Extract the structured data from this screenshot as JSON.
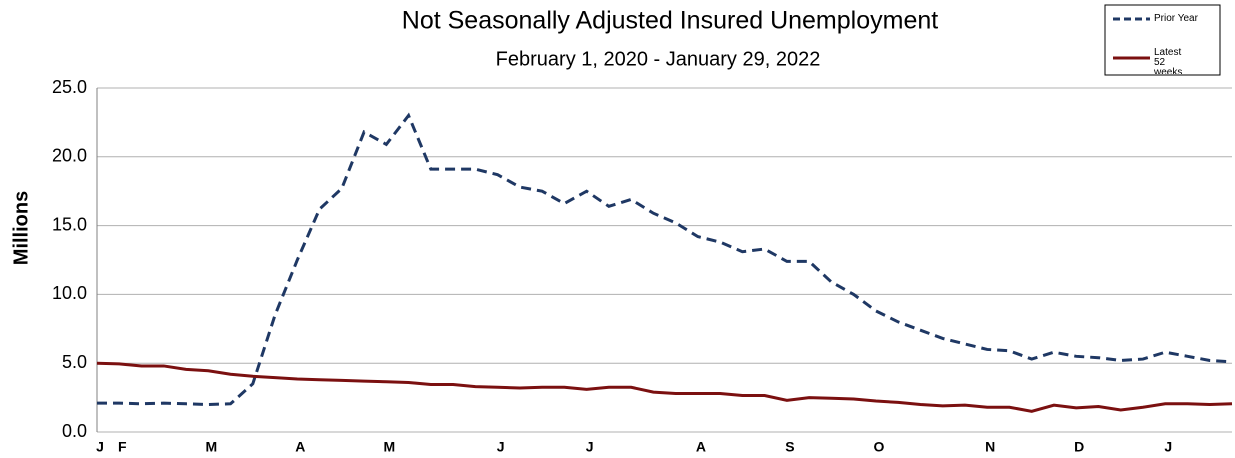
{
  "chart_data": {
    "type": "line",
    "title": "Not Seasonally Adjusted Insured Unemployment",
    "subtitle": "February 1, 2020 - January 29, 2022",
    "y_label": "Millions",
    "categories": [
      "J",
      "F",
      null,
      null,
      null,
      "M",
      null,
      null,
      null,
      "A",
      null,
      null,
      null,
      "M",
      null,
      null,
      null,
      null,
      "J",
      null,
      null,
      null,
      "J",
      null,
      null,
      null,
      null,
      "A",
      null,
      null,
      null,
      "S",
      null,
      null,
      null,
      "O",
      null,
      null,
      null,
      null,
      "N",
      null,
      null,
      null,
      "D",
      null,
      null,
      null,
      "J",
      null,
      null,
      null
    ],
    "series": [
      {
        "name": "Prior Year",
        "color": "#1f3864",
        "dashed": true,
        "values": [
          2.1,
          2.1,
          2.05,
          2.1,
          2.05,
          2.0,
          2.05,
          3.5,
          8.5,
          12.5,
          16.2,
          17.7,
          21.8,
          20.9,
          23.0,
          19.1,
          19.1,
          19.1,
          18.7,
          17.8,
          17.5,
          16.6,
          17.5,
          16.4,
          16.9,
          15.9,
          15.2,
          14.2,
          13.8,
          13.1,
          13.3,
          12.4,
          12.4,
          10.9,
          10.0,
          8.8,
          8.0,
          7.4,
          6.8,
          6.4,
          6.0,
          5.9,
          5.3,
          5.8,
          5.5,
          5.4,
          5.2,
          5.3,
          5.8,
          5.5,
          5.2,
          5.1
        ]
      },
      {
        "name": "Latest 52 weeks",
        "color": "#7b1010",
        "dashed": false,
        "values": [
          5.0,
          4.95,
          4.8,
          4.8,
          4.55,
          4.45,
          4.2,
          4.05,
          3.95,
          3.85,
          3.8,
          3.75,
          3.7,
          3.65,
          3.6,
          3.45,
          3.45,
          3.3,
          3.25,
          3.2,
          3.25,
          3.25,
          3.1,
          3.25,
          3.25,
          2.9,
          2.8,
          2.8,
          2.8,
          2.65,
          2.65,
          2.3,
          2.5,
          2.45,
          2.4,
          2.25,
          2.15,
          2.0,
          1.9,
          1.95,
          1.8,
          1.8,
          1.5,
          1.95,
          1.75,
          1.85,
          1.6,
          1.8,
          2.05,
          2.05,
          2.0,
          2.05
        ]
      }
    ],
    "ylim": [
      0,
      25
    ],
    "yticks": [
      {
        "value": 0,
        "label": "0.0"
      },
      {
        "value": 5,
        "label": "5.0"
      },
      {
        "value": 10,
        "label": "10.0"
      },
      {
        "value": 15,
        "label": "15.0"
      },
      {
        "value": 20,
        "label": "20.0"
      },
      {
        "value": 25,
        "label": "25.0"
      }
    ],
    "grid": true,
    "legend": "top-right"
  }
}
